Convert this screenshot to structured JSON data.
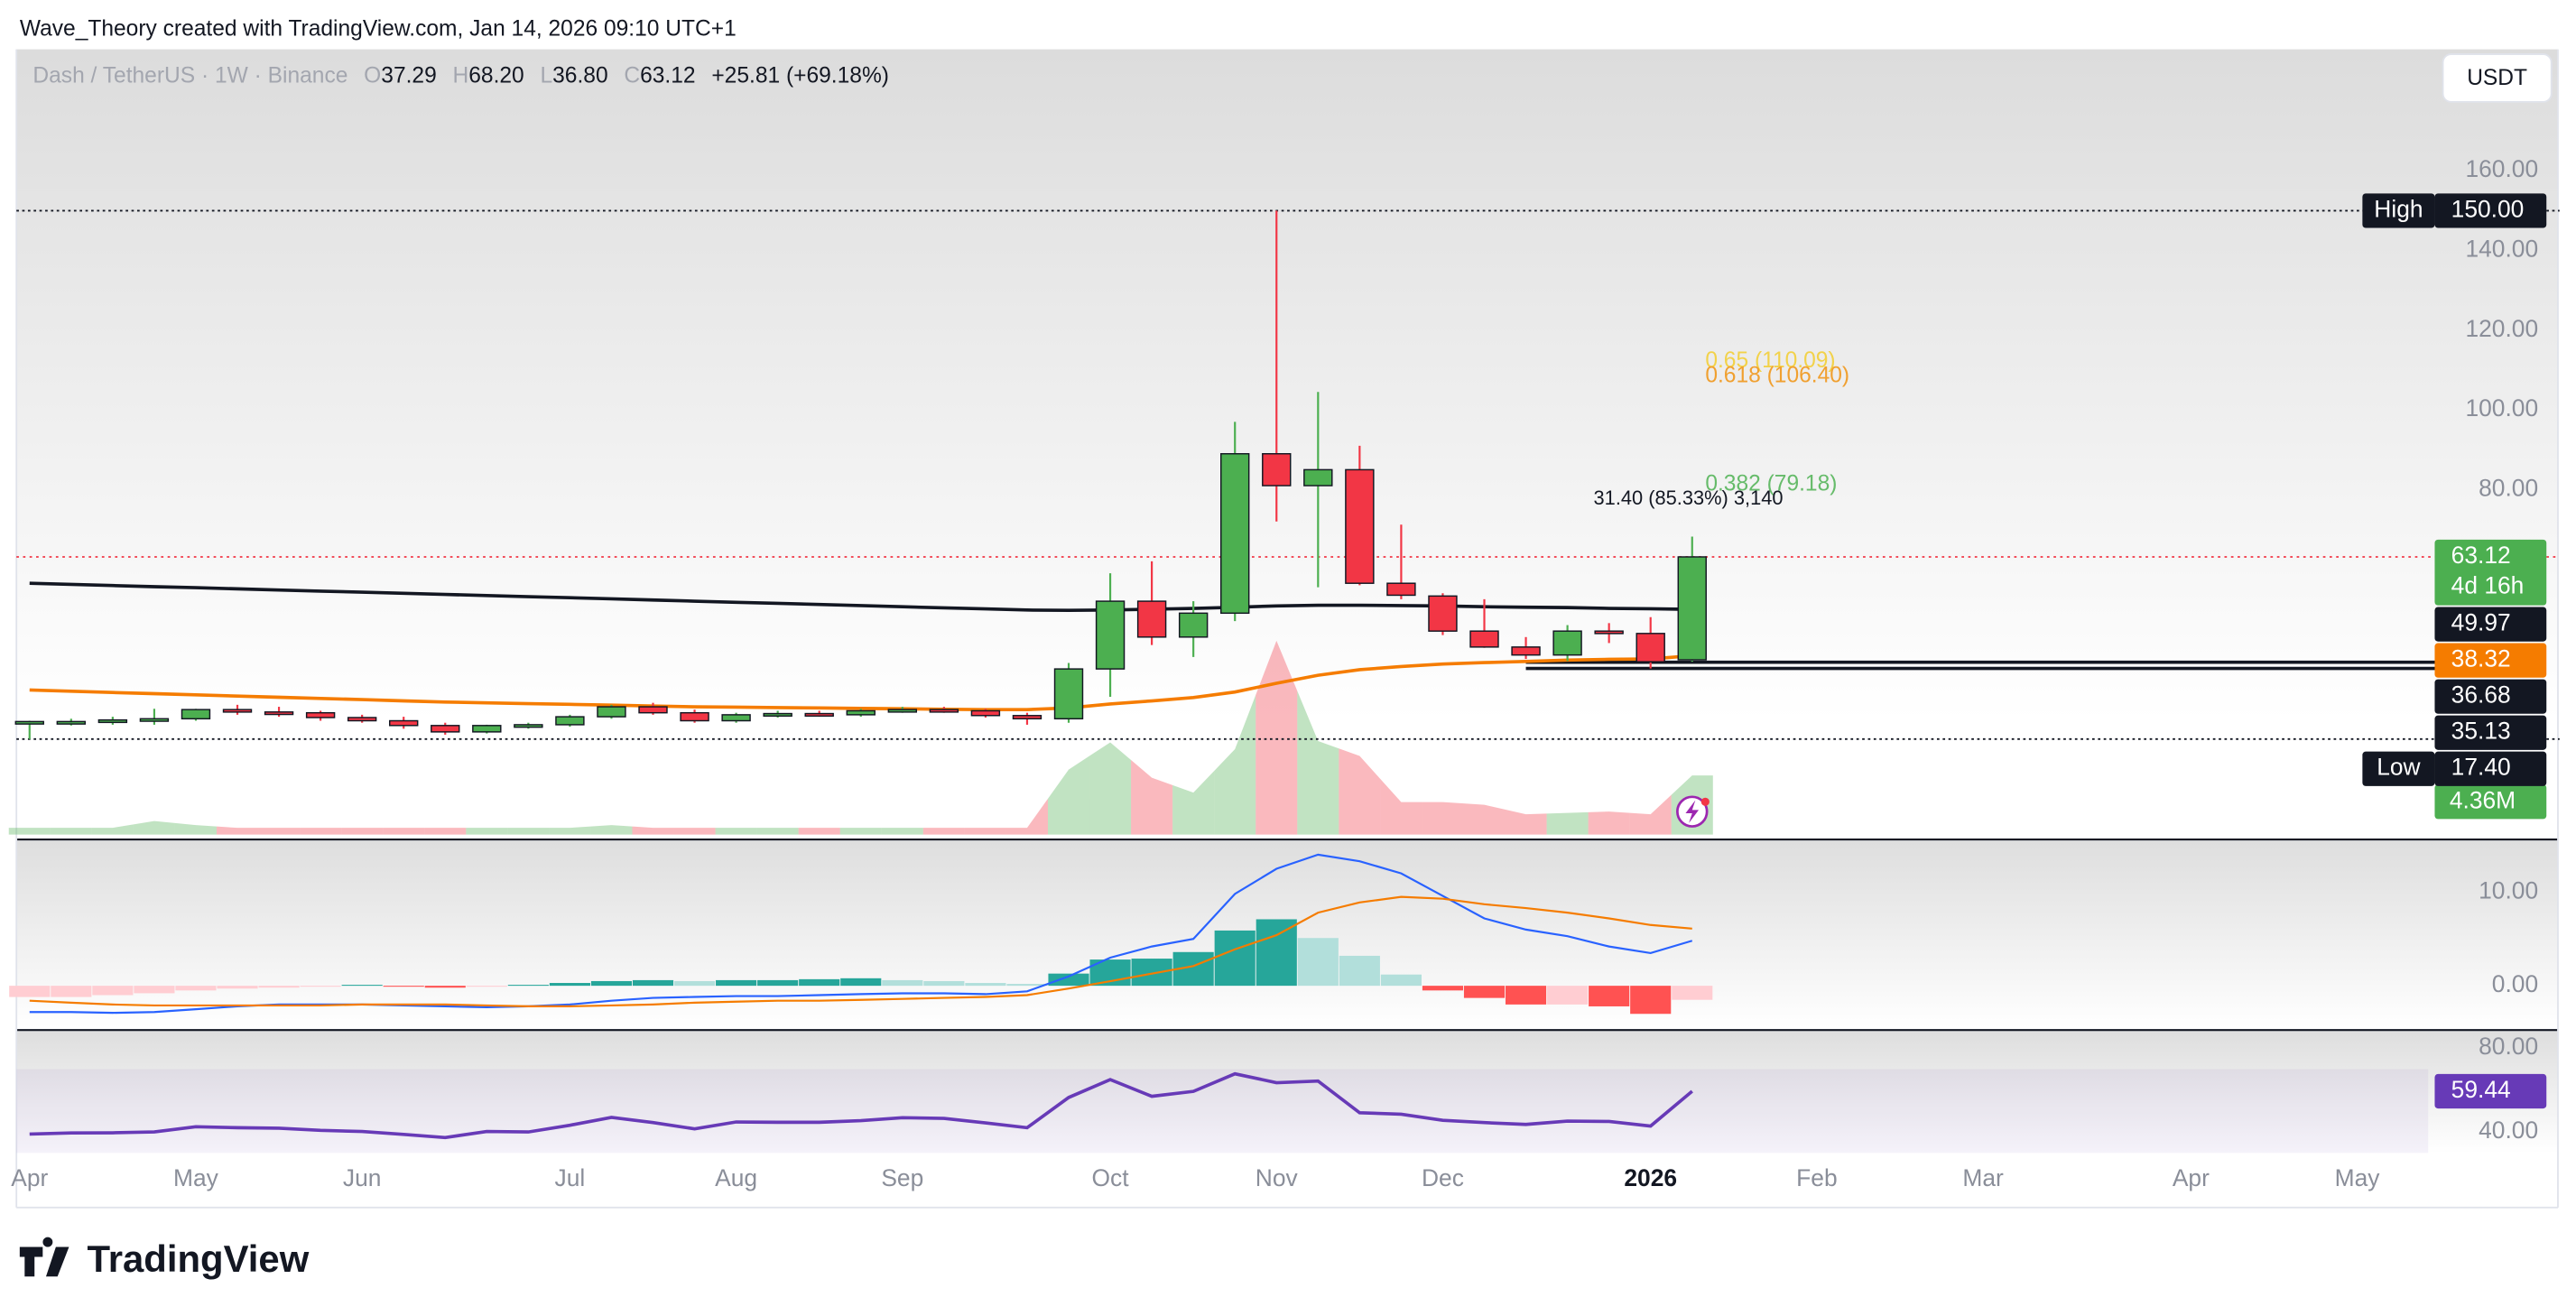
{
  "header": {
    "credit": "Wave_Theory created with TradingView.com, Jan 14, 2026 09:10 UTC+1",
    "ohlc": [
      {
        "key": "O",
        "value": "37.29"
      },
      {
        "key": "H",
        "value": "68.20"
      },
      {
        "key": "L",
        "value": "36.80"
      },
      {
        "key": "C",
        "value": "63.12"
      }
    ],
    "change": "+25.81 (+69.18%)",
    "currency": "USDT",
    "brand": "TradingView"
  },
  "chart_data": [
    {
      "type": "candlestick",
      "title": "Dash / TetherUS · 1W · Binance",
      "categories": [
        "Apr",
        null,
        null,
        null,
        "May",
        null,
        null,
        null,
        "Jun",
        null,
        null,
        null,
        null,
        "Jul",
        null,
        null,
        null,
        "Aug",
        null,
        null,
        null,
        "Sep",
        null,
        null,
        null,
        null,
        "Oct",
        null,
        null,
        null,
        "Nov",
        null,
        null,
        null,
        "Dec",
        null,
        null,
        null,
        null,
        "2026",
        null,
        null,
        null,
        "Feb",
        null,
        null,
        null,
        "Mar",
        null,
        null,
        null,
        null,
        "Apr",
        null,
        null,
        null,
        "May"
      ],
      "open": [
        21.5,
        21.6,
        21.8,
        22.0,
        22.5,
        24.8,
        24.2,
        24.0,
        22.8,
        22.0,
        20.8,
        19.2,
        20.8,
        21.0,
        23.0,
        25.5,
        24.0,
        22.0,
        23.5,
        23.8,
        23.5,
        24.5,
        24.8,
        24.5,
        23.3,
        22.5,
        35.0,
        52.0,
        43.0,
        49.0,
        89.0,
        81.0,
        85.0,
        56.5,
        53.3,
        44.5,
        40.5,
        38.5,
        44.5,
        43.9,
        37.29,
        null,
        null,
        null,
        null,
        null,
        null,
        null,
        null,
        null,
        null,
        null,
        null,
        null,
        null,
        null,
        null
      ],
      "high": [
        22.0,
        22.5,
        23.0,
        25.0,
        25.0,
        26.0,
        25.5,
        24.5,
        23.5,
        23.0,
        21.5,
        21.0,
        21.5,
        23.5,
        26.0,
        26.5,
        24.8,
        24.0,
        24.5,
        24.5,
        25.0,
        25.5,
        25.5,
        25.0,
        24.0,
        36.5,
        59.0,
        62.0,
        52.0,
        97.0,
        150.0,
        104.5,
        91.0,
        71.2,
        54.0,
        52.5,
        43.0,
        46.0,
        46.5,
        48.0,
        68.2,
        null,
        null,
        null,
        null,
        null,
        null,
        null,
        null,
        null,
        null,
        null,
        null,
        null,
        null,
        null,
        null
      ],
      "low": [
        17.4,
        20.8,
        21.0,
        21.0,
        22.0,
        23.5,
        23.0,
        22.0,
        21.5,
        20.0,
        18.5,
        18.8,
        20.0,
        20.5,
        22.5,
        23.5,
        21.5,
        21.5,
        22.8,
        23.0,
        23.0,
        24.0,
        24.0,
        22.8,
        21.0,
        21.5,
        28.0,
        41.0,
        38.0,
        47.0,
        72.0,
        55.5,
        56.0,
        52.5,
        43.5,
        40.3,
        37.5,
        37.0,
        41.5,
        35.1,
        36.8,
        null,
        null,
        null,
        null,
        null,
        null,
        null,
        null,
        null,
        null,
        null,
        null,
        null,
        null,
        null,
        null
      ],
      "close": [
        21.8,
        21.8,
        22.2,
        22.5,
        24.8,
        24.2,
        24.0,
        22.8,
        22.0,
        20.8,
        19.2,
        20.8,
        21.0,
        23.0,
        25.5,
        24.0,
        22.0,
        23.5,
        23.8,
        23.5,
        24.5,
        24.8,
        24.5,
        23.3,
        22.5,
        35.0,
        52.0,
        43.0,
        49.0,
        89.0,
        81.0,
        85.0,
        56.5,
        53.5,
        44.5,
        40.5,
        38.5,
        44.5,
        43.9,
        36.8,
        63.12,
        null,
        null,
        null,
        null,
        null,
        null,
        null,
        null,
        null,
        null,
        null,
        null,
        null,
        null,
        null,
        null
      ],
      "volume": [
        0.5,
        0.5,
        0.5,
        1.0,
        0.7,
        0.5,
        0.5,
        0.5,
        0.5,
        0.5,
        0.5,
        0.5,
        0.5,
        0.5,
        0.7,
        0.5,
        0.5,
        0.5,
        0.5,
        0.5,
        0.5,
        0.5,
        0.5,
        0.5,
        0.5,
        4.8,
        6.8,
        4.2,
        3.1,
        6.3,
        14.3,
        6.9,
        5.8,
        2.4,
        2.4,
        2.2,
        1.5,
        1.6,
        1.7,
        1.5,
        4.36,
        null,
        null,
        null,
        null,
        null,
        null,
        null,
        null,
        null,
        null,
        null,
        null,
        null,
        null,
        null,
        null
      ],
      "volume_label": "4.36M",
      "countdown": "4d 16h",
      "up_color": "#4caf50",
      "down_color": "#f23645",
      "overlays": [
        {
          "color": "#131722",
          "values": [
            56.5,
            56.22,
            55.94,
            55.66,
            55.38,
            55.1,
            54.82,
            54.54,
            54.26,
            53.98,
            53.7,
            53.42,
            53.14,
            52.86,
            52.58,
            52.3,
            52.02,
            51.74,
            51.46,
            51.18,
            50.9,
            50.62,
            50.34,
            50.06,
            49.78,
            49.7,
            49.8,
            50.0,
            50.2,
            50.5,
            50.8,
            51.0,
            51.0,
            50.9,
            50.8,
            50.6,
            50.5,
            50.4,
            50.2,
            50.1,
            49.97,
            null,
            null,
            null,
            null,
            null,
            null,
            null,
            null,
            null,
            null,
            null,
            null,
            null,
            null,
            null,
            null
          ]
        },
        {
          "color": "#f57c00",
          "values": [
            29.7,
            29.4,
            29.1,
            28.8,
            28.5,
            28.2,
            27.9,
            27.6,
            27.3,
            27.0,
            26.7,
            26.5,
            26.3,
            26.1,
            25.9,
            25.7,
            25.5,
            25.4,
            25.3,
            25.2,
            25.1,
            25.0,
            24.9,
            24.8,
            24.8,
            25.2,
            26.2,
            27.0,
            27.8,
            29.2,
            31.4,
            33.4,
            34.8,
            35.6,
            36.2,
            36.6,
            36.9,
            37.2,
            37.4,
            37.5,
            38.32,
            null,
            null,
            null,
            null,
            null,
            null,
            null,
            null,
            null,
            null,
            null,
            null,
            null,
            null,
            null,
            null
          ]
        }
      ],
      "levels": [
        {
          "name": "High",
          "value": 150,
          "label": "150.00"
        },
        {
          "name": "Low",
          "value": 17.4,
          "label": "17.40"
        }
      ],
      "rays": [
        {
          "value": 36.68
        },
        {
          "value": 35.13
        }
      ],
      "fib": [
        {
          "label": "0.65 (110.09)",
          "value": 110.09,
          "color": "#f2d24a"
        },
        {
          "label": "0.618 (106.40)",
          "value": 106.4,
          "color": "#f0a030"
        },
        {
          "label": "0.382 (79.18)",
          "value": 79.18,
          "color": "#66bb6a"
        }
      ],
      "annotation": "31.40 (85.33%) 3,140",
      "ylim": [
        -7.4,
        190.5
      ],
      "yticks": [
        {
          "value": 80,
          "label": "80.00"
        },
        {
          "value": 100,
          "label": "100.00"
        },
        {
          "value": 120,
          "label": "120.00"
        },
        {
          "value": 140,
          "label": "140.00"
        },
        {
          "value": 160,
          "label": "160.00"
        }
      ],
      "grid": false
    },
    {
      "type": "macd",
      "histogram": [
        -1.2,
        -1.2,
        -1.0,
        -0.8,
        -0.5,
        -0.3,
        -0.2,
        -0.1,
        0.1,
        -0.1,
        -0.2,
        -0.1,
        0.1,
        0.3,
        0.5,
        0.6,
        0.5,
        0.6,
        0.6,
        0.7,
        0.8,
        0.6,
        0.5,
        0.3,
        0.2,
        1.3,
        2.8,
        2.9,
        3.6,
        5.9,
        7.1,
        5.1,
        3.2,
        1.2,
        -0.5,
        -1.3,
        -2.0,
        -2.0,
        -2.2,
        -3.0,
        -1.5
      ],
      "macd": [
        -2.8,
        -2.8,
        -2.9,
        -2.8,
        -2.5,
        -2.2,
        -2.0,
        -2.0,
        -2.0,
        -2.1,
        -2.2,
        -2.3,
        -2.2,
        -2.0,
        -1.6,
        -1.3,
        -1.2,
        -1.1,
        -1.1,
        -1.0,
        -0.9,
        -0.8,
        -0.8,
        -0.9,
        -0.6,
        1.0,
        3.0,
        4.2,
        5.0,
        9.8,
        12.5,
        14.0,
        13.3,
        12.0,
        9.6,
        7.2,
        6.0,
        5.3,
        4.2,
        3.5,
        4.8
      ],
      "signal": [
        -1.6,
        -1.8,
        -2.0,
        -2.1,
        -2.1,
        -2.1,
        -2.1,
        -2.1,
        -2.0,
        -2.0,
        -2.0,
        -2.1,
        -2.2,
        -2.2,
        -2.1,
        -2.0,
        -1.8,
        -1.7,
        -1.6,
        -1.6,
        -1.5,
        -1.4,
        -1.3,
        -1.2,
        -1.0,
        -0.3,
        0.5,
        1.3,
        2.1,
        3.9,
        5.4,
        7.8,
        8.9,
        9.5,
        9.3,
        8.7,
        8.3,
        7.8,
        7.2,
        6.5,
        6.1
      ],
      "macd_color": "#2962ff",
      "signal_color": "#f57c00",
      "colors": [
        "#26a69a",
        "#b2dfdb",
        "#ff5252",
        "#ffcdd2"
      ],
      "ylim": [
        -4.56,
        15.44
      ],
      "yticks": [
        {
          "value": 0,
          "label": "0.00"
        },
        {
          "value": 10,
          "label": "10.00"
        }
      ]
    },
    {
      "type": "line",
      "values": [
        39,
        39.5,
        39.6,
        40,
        42.5,
        42,
        41.8,
        40.8,
        40.2,
        38.8,
        37.3,
        40.2,
        40,
        43.2,
        47,
        44.5,
        41.5,
        44.8,
        44.6,
        44.6,
        45.4,
        46.8,
        46.5,
        44.3,
        42,
        56.5,
        65,
        57,
        59.4,
        67.8,
        63.5,
        64.3,
        49.2,
        48.5,
        45.6,
        44.5,
        43.6,
        45.2,
        45,
        42.8,
        59.44
      ],
      "color": "#673ab7",
      "band": [
        30,
        70
      ],
      "ylim": [
        29.8,
        87.84
      ],
      "yticks": [
        {
          "value": 40,
          "label": "40.00"
        },
        {
          "value": 80,
          "label": "80.00"
        }
      ]
    }
  ]
}
